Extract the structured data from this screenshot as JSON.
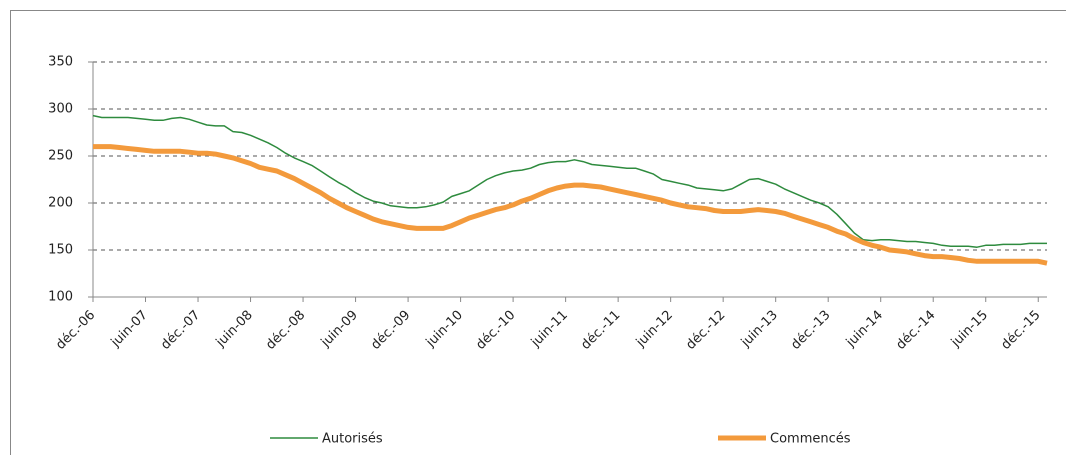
{
  "chart_data": {
    "type": "line",
    "categories": [
      "déc.-06",
      null,
      null,
      null,
      null,
      null,
      "juin-07",
      null,
      null,
      null,
      null,
      null,
      "déc.-07",
      null,
      null,
      null,
      null,
      null,
      "juin-08",
      null,
      null,
      null,
      null,
      null,
      "déc.-08",
      null,
      null,
      null,
      null,
      null,
      "juin-09",
      null,
      null,
      null,
      null,
      null,
      "déc.-09",
      null,
      null,
      null,
      null,
      null,
      "juin-10",
      null,
      null,
      null,
      null,
      null,
      "déc.-10",
      null,
      null,
      null,
      null,
      null,
      "juin-11",
      null,
      null,
      null,
      null,
      null,
      "déc.-11",
      null,
      null,
      null,
      null,
      null,
      "juin-12",
      null,
      null,
      null,
      null,
      null,
      "déc.-12",
      null,
      null,
      null,
      null,
      null,
      "juin-13",
      null,
      null,
      null,
      null,
      null,
      "déc.-13",
      null,
      null,
      null,
      null,
      null,
      "juin-14",
      null,
      null,
      null,
      null,
      null,
      "déc.-14",
      null,
      null,
      null,
      null,
      null,
      "juin-15",
      null,
      null,
      null,
      null,
      null,
      "déc.-15",
      null
    ],
    "series": [
      {
        "name": "Autorisés",
        "color": "#2e8b3e",
        "width": 1.5,
        "values": [
          293,
          291,
          291,
          291,
          291,
          290,
          289,
          288,
          288,
          290,
          291,
          289,
          286,
          283,
          282,
          282,
          276,
          275,
          272,
          268,
          264,
          259,
          253,
          248,
          244,
          240,
          234,
          228,
          222,
          217,
          211,
          206,
          202,
          200,
          197,
          196,
          195,
          195,
          196,
          198,
          201,
          207,
          210,
          213,
          219,
          225,
          229,
          232,
          234,
          235,
          237,
          241,
          243,
          244,
          244,
          246,
          244,
          241,
          240,
          239,
          238,
          237,
          237,
          234,
          231,
          225,
          223,
          221,
          219,
          216,
          215,
          214,
          213,
          215,
          220,
          225,
          226,
          223,
          220,
          215,
          211,
          207,
          203,
          200,
          196,
          188,
          178,
          168,
          161,
          160,
          161,
          161,
          160,
          159,
          159,
          158,
          157,
          155,
          154,
          154,
          154,
          153,
          155,
          155,
          156,
          156,
          156,
          157,
          157,
          157
        ]
      },
      {
        "name": "Commencés",
        "color": "#f39a3c",
        "width": 5,
        "values": [
          260,
          260,
          260,
          259,
          258,
          257,
          256,
          255,
          255,
          255,
          255,
          254,
          253,
          253,
          252,
          250,
          248,
          245,
          242,
          238,
          236,
          234,
          230,
          226,
          221,
          216,
          211,
          205,
          200,
          195,
          191,
          187,
          183,
          180,
          178,
          176,
          174,
          173,
          173,
          173,
          173,
          176,
          180,
          184,
          187,
          190,
          193,
          195,
          198,
          202,
          205,
          209,
          213,
          216,
          218,
          219,
          219,
          218,
          217,
          215,
          213,
          211,
          209,
          207,
          205,
          203,
          200,
          198,
          196,
          195,
          194,
          192,
          191,
          191,
          191,
          192,
          193,
          192,
          191,
          189,
          186,
          183,
          180,
          177,
          174,
          170,
          167,
          162,
          158,
          155,
          153,
          150,
          149,
          148,
          146,
          144,
          143,
          143,
          142,
          141,
          139,
          138,
          138,
          138,
          138,
          138,
          138,
          138,
          138,
          136
        ]
      }
    ],
    "ylim": [
      100,
      350
    ],
    "yticks": [
      100,
      150,
      200,
      250,
      300,
      350
    ],
    "grid": true
  }
}
